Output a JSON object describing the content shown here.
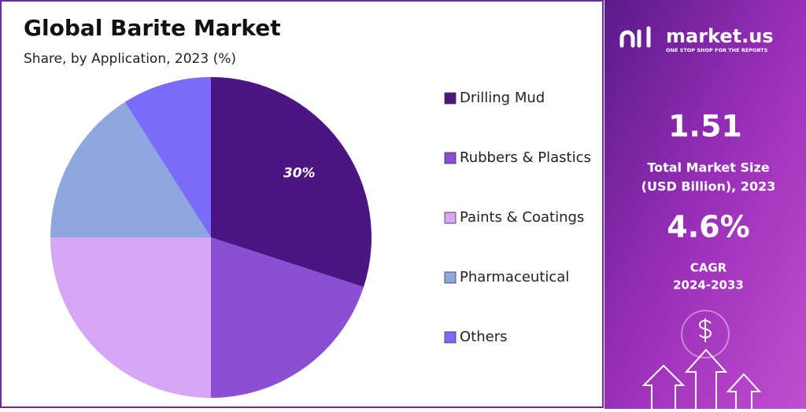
{
  "chart_data": {
    "type": "pie",
    "title": "Global Barite Market",
    "subtitle": "Share, by Application, 2023 (%)",
    "categories": [
      "Drilling Mud",
      "Rubbers & Plastics",
      "Paints & Coatings",
      "Pharmaceutical",
      "Others"
    ],
    "values": [
      30,
      20,
      25,
      16,
      9
    ],
    "value_labels": [
      "30%",
      null,
      null,
      null,
      null
    ],
    "colors": [
      "#4b1582",
      "#8a4fd3",
      "#d6a7f5",
      "#8fa6de",
      "#7b6cf8"
    ],
    "legend": "right"
  },
  "panel": {
    "brand": "market.us",
    "tagline": "ONE STOP SHOP FOR THE REPORTS",
    "market_size": "1.51",
    "market_size_label": [
      "Total Market Size",
      "(USD Billion), 2023"
    ],
    "cagr": "4.6%",
    "cagr_label": [
      "CAGR",
      "2024-2033"
    ]
  }
}
